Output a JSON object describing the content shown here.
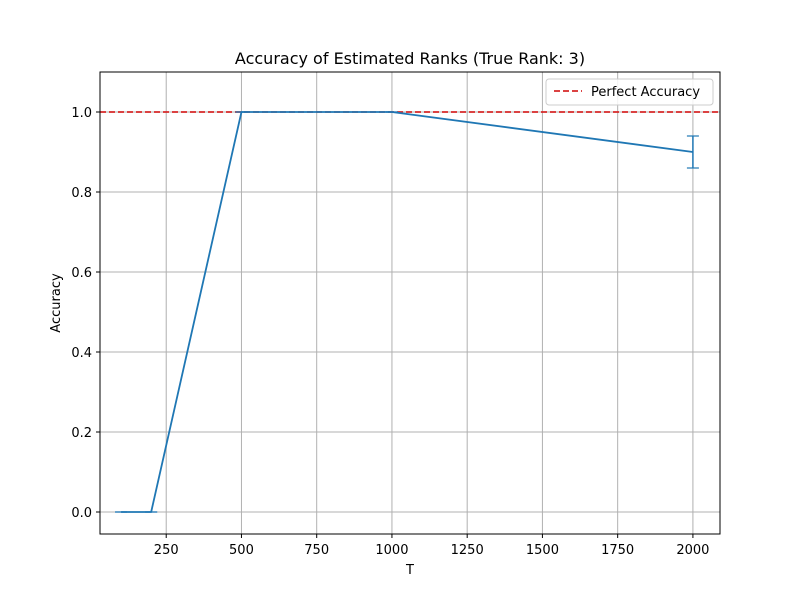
{
  "chart_data": {
    "type": "line",
    "title": "Accuracy of Estimated Ranks (True Rank: 3)",
    "xlabel": "T",
    "ylabel": "Accuracy",
    "xlim": [
      30,
      2090
    ],
    "ylim": [
      -0.055,
      1.1
    ],
    "x_ticks": [
      250,
      500,
      750,
      1000,
      1250,
      1500,
      1750,
      2000
    ],
    "y_ticks": [
      0.0,
      0.2,
      0.4,
      0.6,
      0.8,
      1.0
    ],
    "x_tick_labels": [
      "250",
      "500",
      "750",
      "1000",
      "1250",
      "1500",
      "1750",
      "2000"
    ],
    "y_tick_labels": [
      "0.0",
      "0.2",
      "0.4",
      "0.6",
      "0.8",
      "1.0"
    ],
    "grid": true,
    "legend_position": "upper right",
    "series": [
      {
        "color": "#1f77b4",
        "x": [
          100,
          200,
          500,
          1000,
          2000
        ],
        "y": [
          0.0,
          0.0,
          1.0,
          1.0,
          0.9
        ],
        "yerr": [
          0.0,
          0.0,
          0.0,
          0.0,
          0.04
        ]
      }
    ],
    "reference_line": {
      "name": "Perfect Accuracy",
      "y": 1.0,
      "color": "#d62728",
      "style": "dashed"
    }
  }
}
